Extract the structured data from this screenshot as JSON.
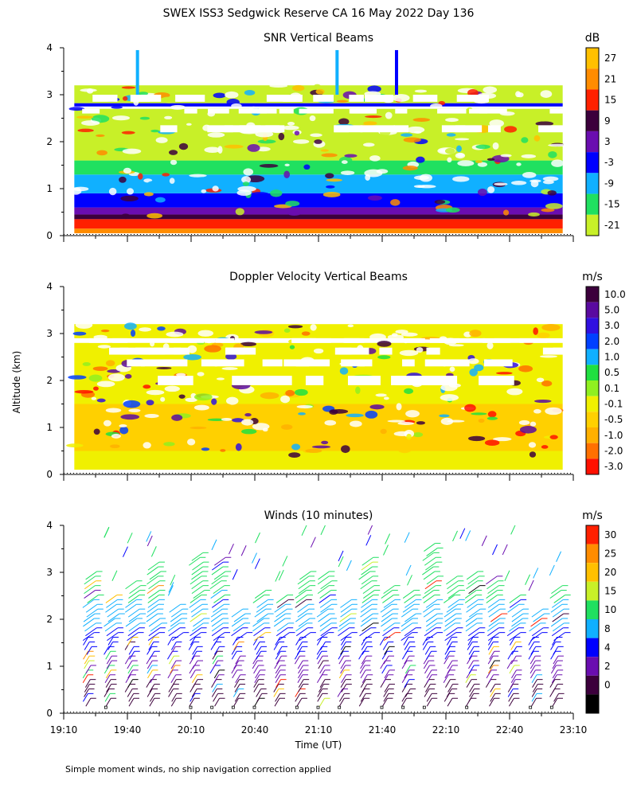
{
  "figure_title": "SWEX ISS3 Sedgwick Reserve CA  16 May 2022 Day 136",
  "y_axis_label": "Altitude (km)",
  "x_axis_label": "Time (UT)",
  "footnote": "Simple moment winds, no ship navigation correction applied",
  "x_ticks": [
    "19:10",
    "19:40",
    "20:10",
    "20:40",
    "21:10",
    "21:40",
    "22:10",
    "22:40",
    "23:10"
  ],
  "y_ticks": [
    "0",
    "1",
    "2",
    "3",
    "4"
  ],
  "chart_data": [
    {
      "type": "heatmap",
      "title": "SNR Vertical Beams",
      "unit": "dB",
      "xlabel": "Time (UT)",
      "ylabel": "Altitude (km)",
      "xlim": [
        "19:10",
        "23:10"
      ],
      "ylim": [
        0,
        4
      ],
      "colorbar_labels": [
        "27",
        "21",
        "15",
        "9",
        "3",
        "-3",
        "-9",
        "-15",
        "-21"
      ],
      "colorbar_colors": [
        "#ffc000",
        "#ff8c00",
        "#ff2000",
        "#3c003c",
        "#6a0db0",
        "#0000ff",
        "#10b0ff",
        "#20e060",
        "#c8f028"
      ],
      "layers": [
        {
          "from_km": 0.05,
          "to_km": 0.15,
          "color": "#ff8c00"
        },
        {
          "from_km": 0.15,
          "to_km": 0.35,
          "color": "#ff2000"
        },
        {
          "from_km": 0.35,
          "to_km": 0.45,
          "color": "#3c003c"
        },
        {
          "from_km": 0.45,
          "to_km": 0.6,
          "color": "#6a0db0"
        },
        {
          "from_km": 0.6,
          "to_km": 0.9,
          "color": "#0000ff"
        },
        {
          "from_km": 0.9,
          "to_km": 1.3,
          "color": "#10b0ff"
        },
        {
          "from_km": 1.3,
          "to_km": 1.6,
          "color": "#20e060"
        },
        {
          "from_km": 1.6,
          "to_km": 2.7,
          "color": "#c8f028"
        },
        {
          "from_km": 2.75,
          "to_km": 2.82,
          "color": "#0000ff"
        },
        {
          "from_km": 2.82,
          "to_km": 3.2,
          "color": "#c8f028"
        }
      ]
    },
    {
      "type": "heatmap",
      "title": "Doppler Velocity Vertical Beams",
      "unit": "m/s",
      "xlabel": "Time (UT)",
      "ylabel": "Altitude (km)",
      "xlim": [
        "19:10",
        "23:10"
      ],
      "ylim": [
        0,
        4
      ],
      "colorbar_labels": [
        "10.0",
        "5.0",
        "3.0",
        "2.0",
        "1.0",
        "0.5",
        "0.1",
        "-0.1",
        "-0.5",
        "-1.0",
        "-2.0",
        "-3.0"
      ],
      "colorbar_colors": [
        "#3c003c",
        "#5a0aa0",
        "#3010e0",
        "#0040ff",
        "#10b0ff",
        "#20e040",
        "#90f020",
        "#f0f000",
        "#ffd000",
        "#ffb000",
        "#ff7000",
        "#ff1000"
      ],
      "layers": [
        {
          "from_km": 0.1,
          "to_km": 0.5,
          "color": "#f0f000"
        },
        {
          "from_km": 0.5,
          "to_km": 1.5,
          "color": "#ffd000"
        },
        {
          "from_km": 1.5,
          "to_km": 2.8,
          "color": "#f0f000"
        },
        {
          "from_km": 2.9,
          "to_km": 3.2,
          "color": "#f0f000"
        }
      ]
    },
    {
      "type": "wind_barbs",
      "title": "Winds (10 minutes)",
      "unit": "m/s",
      "xlabel": "Time (UT)",
      "ylabel": "Altitude (km)",
      "xlim": [
        "19:10",
        "23:10"
      ],
      "ylim": [
        0,
        4
      ],
      "colorbar_labels": [
        "30",
        "25",
        "20",
        "15",
        "10",
        "8",
        "4",
        "2",
        "0"
      ],
      "colorbar_colors": [
        "#ff2000",
        "#ff8c00",
        "#ffc000",
        "#c8f028",
        "#20e060",
        "#10b0ff",
        "#0000ff",
        "#6a0db0",
        "#3c003c",
        "#000000"
      ],
      "profile_times": [
        "19:20",
        "19:30",
        "19:40",
        "19:50",
        "20:00",
        "20:10",
        "20:20",
        "20:30",
        "20:40",
        "20:50",
        "21:00",
        "21:10",
        "21:20",
        "21:30",
        "21:40",
        "21:50",
        "22:00",
        "22:10",
        "22:20",
        "22:30",
        "22:40",
        "22:50",
        "23:00"
      ],
      "typical_top_km": 2.2,
      "max_top_km": 3.6
    }
  ]
}
